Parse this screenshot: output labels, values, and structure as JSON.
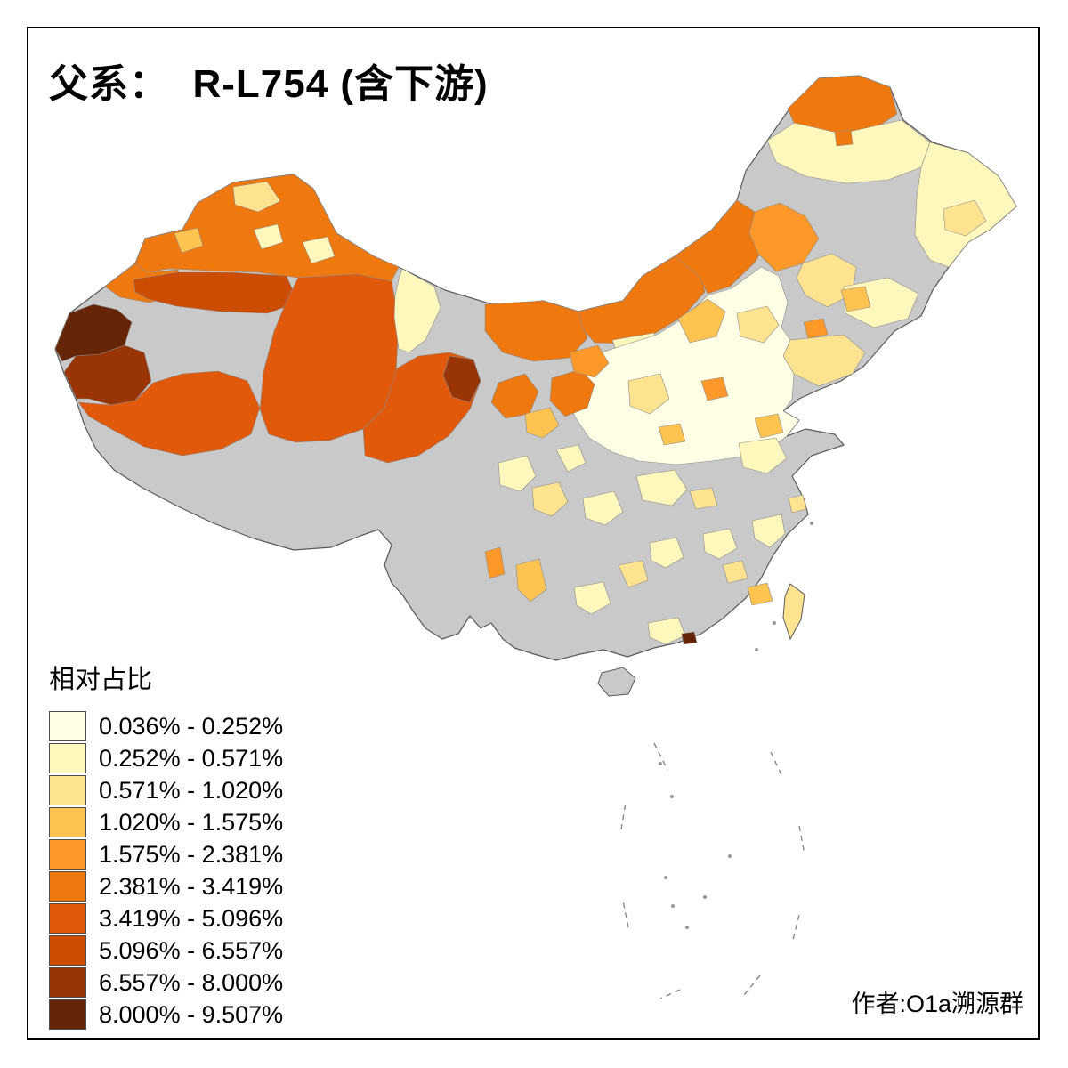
{
  "title": "父系：  R-L754 (含下游)",
  "author": "作者:O1a溯源群",
  "legend": {
    "title": "相对占比",
    "classes": [
      {
        "label": "0.036% - 0.252%",
        "color": "#ffffe5"
      },
      {
        "label": "0.252% - 0.571%",
        "color": "#fff7bc"
      },
      {
        "label": "0.571% - 1.020%",
        "color": "#fee391"
      },
      {
        "label": "1.020% - 1.575%",
        "color": "#fec44f"
      },
      {
        "label": "1.575% - 2.381%",
        "color": "#fe9929"
      },
      {
        "label": "2.381% - 3.419%",
        "color": "#f0790f"
      },
      {
        "label": "3.419% - 5.096%",
        "color": "#e1590a"
      },
      {
        "label": "5.096% - 6.557%",
        "color": "#cc4c02"
      },
      {
        "label": "6.557% - 8.000%",
        "color": "#993404"
      },
      {
        "label": "8.000% - 9.507%",
        "color": "#662506"
      }
    ]
  },
  "map": {
    "name": "china-choropleth",
    "no_data_color": "#c9c9c9",
    "boundary_color": "#8a8a8a",
    "outline_color": "#5a5a5a",
    "dash_line_color": "#888888"
  }
}
